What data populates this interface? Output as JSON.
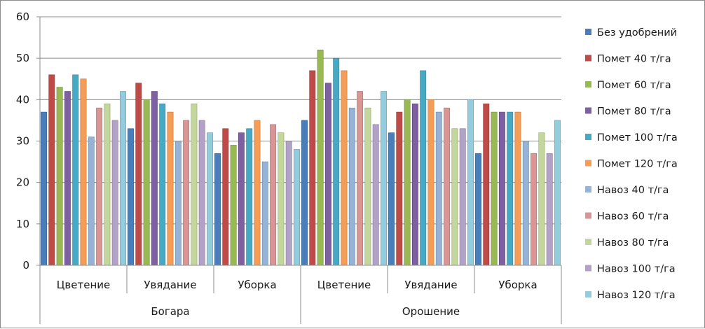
{
  "chart_data": {
    "type": "bar",
    "title": "",
    "xlabel": "",
    "ylabel": "",
    "ylim": [
      0,
      60
    ],
    "yticks": [
      0,
      10,
      20,
      30,
      40,
      50,
      60
    ],
    "grid": true,
    "legend_position": "right",
    "groups": [
      {
        "label": "Богара",
        "categories": [
          "Цветение",
          "Увядание",
          "Уборка"
        ]
      },
      {
        "label": "Орошение",
        "categories": [
          "Цветение",
          "Увядание",
          "Уборка"
        ]
      }
    ],
    "categories": [
      "Цветение",
      "Увядание",
      "Уборка",
      "Цветение",
      "Увядание",
      "Уборка"
    ],
    "series": [
      {
        "name": "Без удобрений",
        "color": "#4a7ebb",
        "values": [
          37,
          33,
          27,
          35,
          32,
          27
        ]
      },
      {
        "name": "Помет 40 т/га",
        "color": "#be4b48",
        "values": [
          46,
          44,
          33,
          47,
          37,
          39
        ]
      },
      {
        "name": "Помет 60 т/га",
        "color": "#98b954",
        "values": [
          43,
          40,
          29,
          52,
          40,
          37
        ]
      },
      {
        "name": "Помет 80 т/га",
        "color": "#7d60a0",
        "values": [
          42,
          42,
          32,
          44,
          39,
          37
        ]
      },
      {
        "name": "Помет 100 т/га",
        "color": "#46aac5",
        "values": [
          46,
          39,
          33,
          50,
          47,
          37
        ]
      },
      {
        "name": "Помет 120 т/га",
        "color": "#f59d56",
        "values": [
          45,
          37,
          35,
          47,
          40,
          37
        ]
      },
      {
        "name": "Навоз 40 т/га",
        "color": "#95b3d7",
        "values": [
          31,
          30,
          25,
          38,
          37,
          30
        ]
      },
      {
        "name": "Навоз 60 т/га",
        "color": "#d99694",
        "values": [
          38,
          35,
          34,
          42,
          38,
          27
        ]
      },
      {
        "name": "Навоз 80 т/га",
        "color": "#c3d69b",
        "values": [
          39,
          39,
          32,
          38,
          33,
          32
        ]
      },
      {
        "name": "Навоз 100 т/га",
        "color": "#b2a2c7",
        "values": [
          35,
          35,
          30,
          34,
          33,
          27
        ]
      },
      {
        "name": "Навоз 120 т/га",
        "color": "#93cddd",
        "values": [
          42,
          32,
          28,
          42,
          40,
          35
        ]
      }
    ]
  }
}
